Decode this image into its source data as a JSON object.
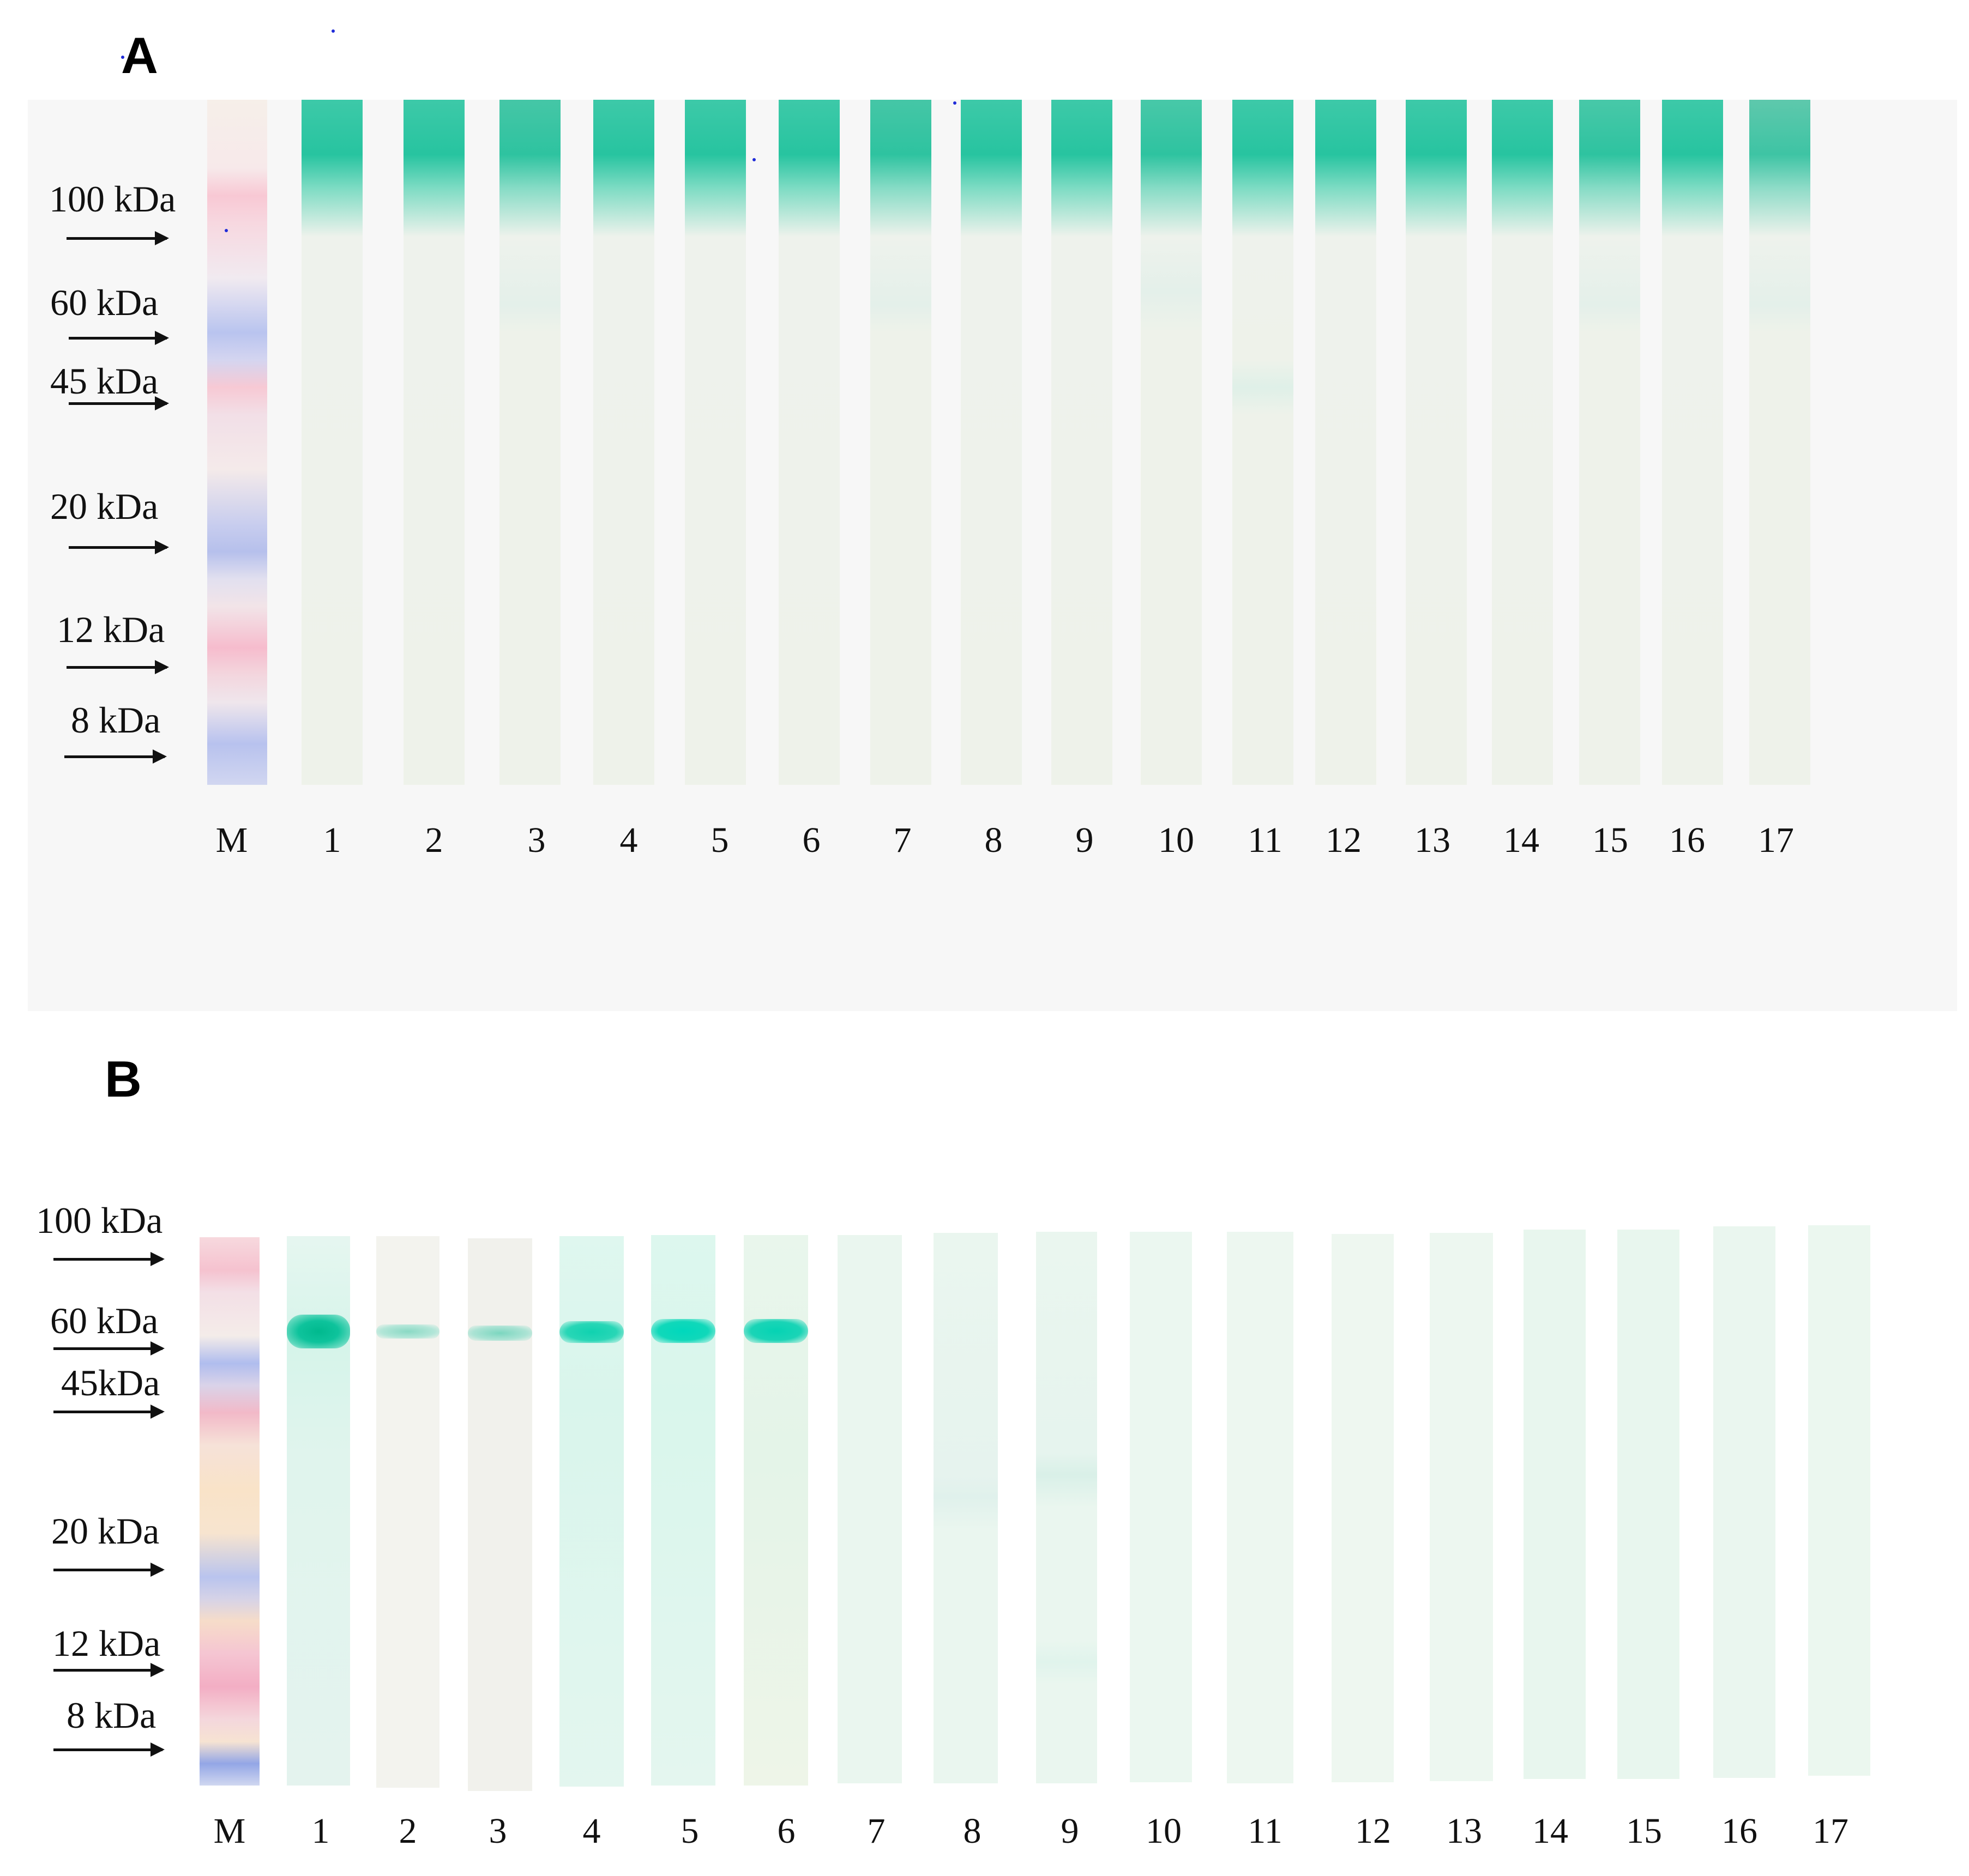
{
  "panels": {
    "a": {
      "letter": "A",
      "markers": [
        "100 kDa",
        "60 kDa",
        "45 kDa",
        "20 kDa",
        "12 kDa",
        "8 kDa"
      ],
      "marker_lane_label": "M",
      "lane_labels": [
        "1",
        "2",
        "3",
        "4",
        "5",
        "6",
        "7",
        "8",
        "9",
        "10",
        "11",
        "12",
        "13",
        "14",
        "15",
        "16",
        "17"
      ]
    },
    "b": {
      "letter": "B",
      "markers": [
        "100 kDa",
        "60 kDa",
        "45kDa",
        "20 kDa",
        "12 kDa",
        "8 kDa"
      ],
      "marker_lane_label": "M",
      "lane_labels": [
        "1",
        "2",
        "3",
        "4",
        "5",
        "6",
        "7",
        "8",
        "9",
        "10",
        "11",
        "12",
        "13",
        "14",
        "15",
        "16",
        "17"
      ]
    }
  },
  "colors": {
    "strip": "#eef1ea",
    "teal_band": "#1fc9a6",
    "marker_pink": "#f6a9c0",
    "marker_blue": "#a7b3ea"
  }
}
